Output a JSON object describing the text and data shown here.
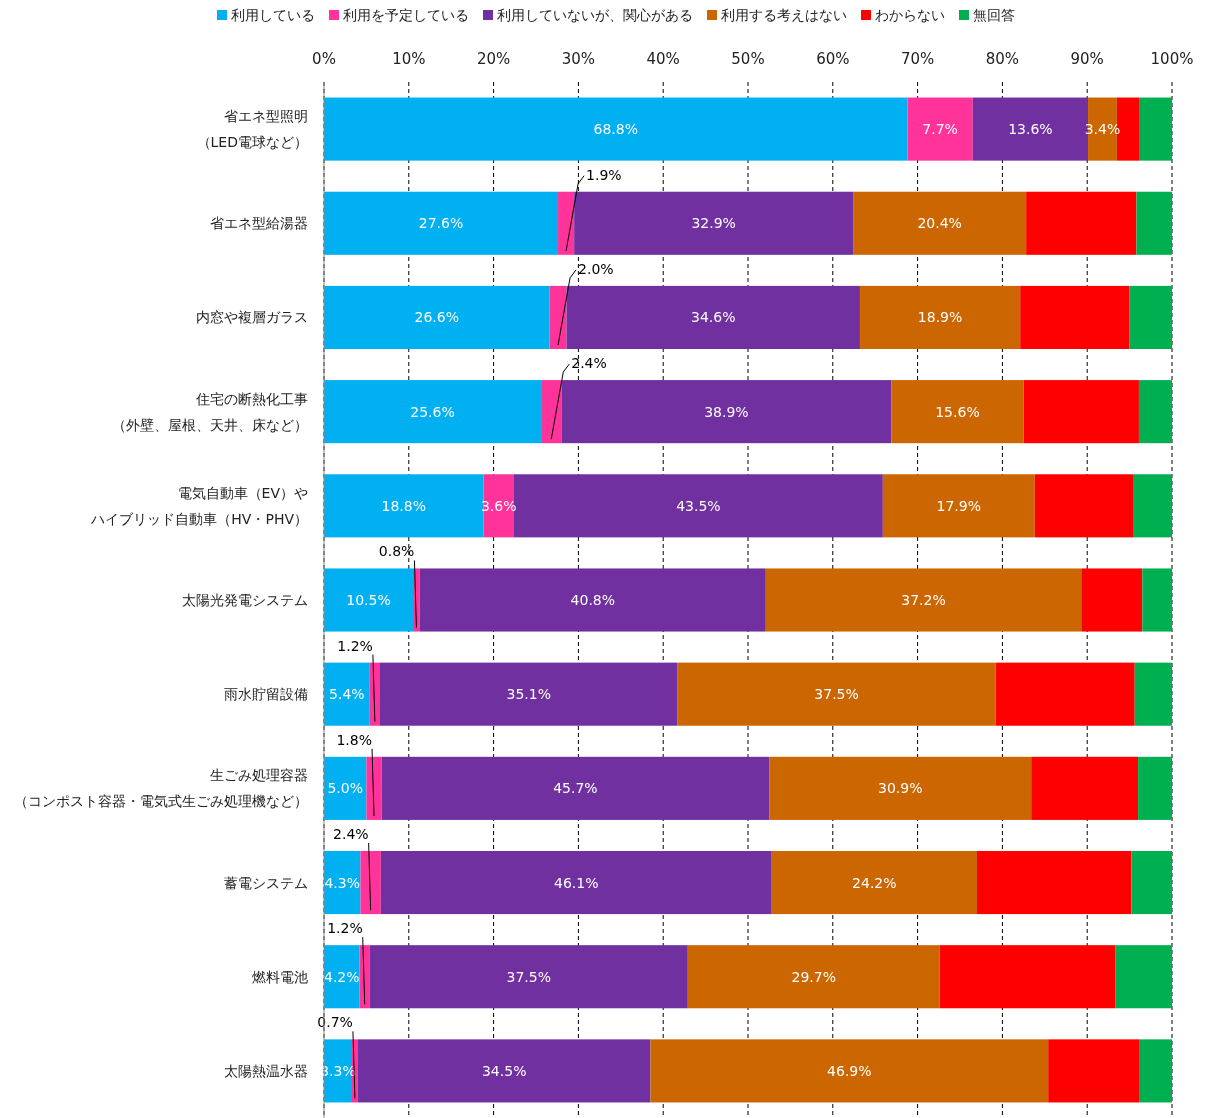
{
  "chart_data": {
    "type": "bar",
    "orientation": "horizontal",
    "stacked": true,
    "legend": "top",
    "grid": "x",
    "categories": [
      "省エネ型照明（LED電球など）",
      "省エネ型給湯器",
      "内窓や複層ガラス",
      "住宅の断熱化工事（外壁、屋根、天井、床など）",
      "電気自動車（EV）やハイブリッド自動車（HV・PHV）",
      "太陽光発電システム",
      "雨水貯留設備",
      "生ごみ処理容器（コンポスト容器・電気式生ごみ処理機など）",
      "蓄電システム",
      "燃料電池",
      "太陽熱温水器"
    ],
    "xlim": [
      0,
      100
    ],
    "xticks": [
      {
        "value": 0,
        "label": "0%"
      },
      {
        "value": 10,
        "label": "10%"
      },
      {
        "value": 20,
        "label": "20%"
      },
      {
        "value": 30,
        "label": "30%"
      },
      {
        "value": 40,
        "label": "40%"
      },
      {
        "value": 50,
        "label": "50%"
      },
      {
        "value": 60,
        "label": "60%"
      },
      {
        "value": 70,
        "label": "70%"
      },
      {
        "value": 80,
        "label": "80%"
      },
      {
        "value": 90,
        "label": "90%"
      },
      {
        "value": 100,
        "label": "100%"
      }
    ],
    "series": [
      {
        "name": "利用している",
        "color": "#00b0f0",
        "values": [
          68.8,
          27.6,
          26.6,
          25.6,
          18.8,
          10.5,
          5.4,
          5.0,
          4.3,
          4.2,
          3.3
        ],
        "value_labels": [
          "68.8%",
          "27.6%",
          "26.6%",
          "25.6%",
          "18.8%",
          "10.5%",
          "5.4%",
          "5.0%",
          "4.3%",
          "4.2%",
          "3.3%"
        ]
      },
      {
        "name": "利用を予定している",
        "color": "#ff3399",
        "values": [
          7.7,
          1.9,
          2.0,
          2.4,
          3.6,
          0.8,
          1.2,
          1.8,
          2.4,
          1.2,
          0.7
        ],
        "value_labels": [
          "7.7%",
          "1.9%",
          "2.0%",
          "2.4%",
          "3.6%",
          "0.8%",
          "1.2%",
          "1.8%",
          "2.4%",
          "1.2%",
          "0.7%"
        ]
      },
      {
        "name": "利用していないが、関心がある",
        "color": "#7030a0",
        "values": [
          13.6,
          32.9,
          34.6,
          38.9,
          43.5,
          40.8,
          35.1,
          45.7,
          46.1,
          37.5,
          34.5
        ],
        "value_labels": [
          "13.6%",
          "32.9%",
          "34.6%",
          "38.9%",
          "43.5%",
          "40.8%",
          "35.1%",
          "45.7%",
          "46.1%",
          "37.5%",
          "34.5%"
        ]
      },
      {
        "name": "利用する考えはない",
        "color": "#cc6600",
        "values": [
          3.4,
          20.4,
          18.9,
          15.6,
          17.9,
          37.2,
          37.5,
          30.9,
          24.2,
          29.7,
          46.9
        ],
        "value_labels": [
          "3.4%",
          "20.4%",
          "18.9%",
          "15.6%",
          "17.9%",
          "37.2%",
          "37.5%",
          "30.9%",
          "24.2%",
          "29.7%",
          "46.9%"
        ]
      },
      {
        "name": "わからない",
        "color": "#ff0000",
        "values": [
          2.7,
          13.0,
          12.9,
          13.6,
          11.6,
          7.2,
          16.4,
          12.6,
          18.2,
          20.7,
          10.8
        ]
      },
      {
        "name": "無回答",
        "color": "#00b050",
        "values": [
          3.8,
          4.2,
          5.0,
          3.9,
          4.6,
          3.5,
          4.4,
          4.0,
          4.8,
          6.7,
          3.8
        ]
      }
    ]
  }
}
